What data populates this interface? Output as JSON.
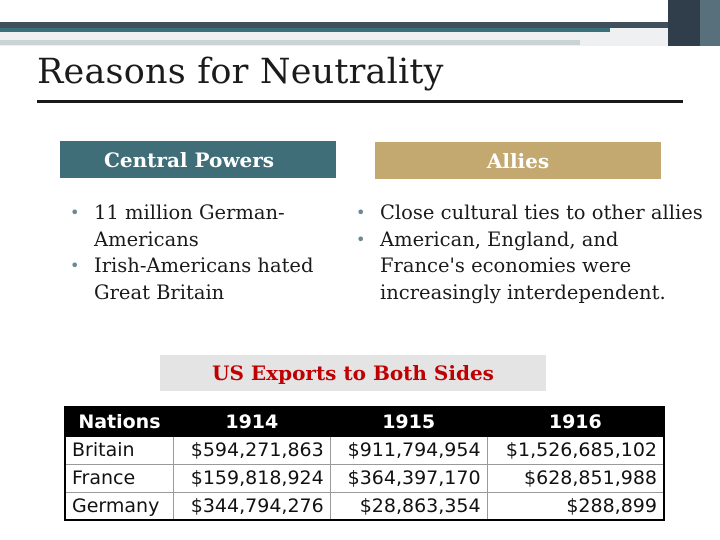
{
  "slide": {
    "title": "Reasons for Neutrality",
    "central_header": "Central Powers",
    "allies_header": "Allies",
    "central_bullets": [
      "11 million German-Americans",
      "Irish-Americans hated Great Britain"
    ],
    "allies_bullets": [
      "Close cultural ties to other allies",
      "American, England, and France's economies were increasingly interdependent."
    ],
    "exports_label": "US Exports to Both Sides"
  },
  "table": {
    "headers": [
      "Nations",
      "1914",
      "1915",
      "1916"
    ],
    "rows": [
      [
        "Britain",
        "$594,271,863",
        "$911,794,954",
        "$1,526,685,102"
      ],
      [
        "France",
        "$159,818,924",
        "$364,397,170",
        "$628,851,988"
      ],
      [
        "Germany",
        "$344,794,276",
        "$28,863,354",
        "$288,899"
      ]
    ]
  },
  "colors": {
    "central_header_bg": "#3f6d78",
    "allies_header_bg": "#c3a96f",
    "exports_text": "#c00000",
    "table_header_bg": "#000000"
  }
}
